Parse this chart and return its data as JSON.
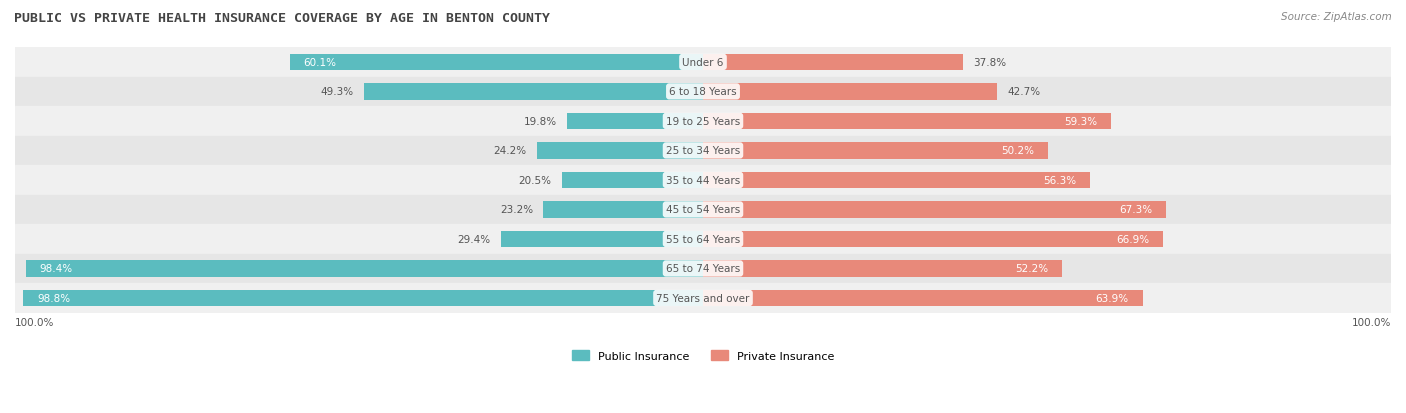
{
  "title": "PUBLIC VS PRIVATE HEALTH INSURANCE COVERAGE BY AGE IN BENTON COUNTY",
  "source": "Source: ZipAtlas.com",
  "categories": [
    "Under 6",
    "6 to 18 Years",
    "19 to 25 Years",
    "25 to 34 Years",
    "35 to 44 Years",
    "45 to 54 Years",
    "55 to 64 Years",
    "65 to 74 Years",
    "75 Years and over"
  ],
  "public_values": [
    60.1,
    49.3,
    19.8,
    24.2,
    20.5,
    23.2,
    29.4,
    98.4,
    98.8
  ],
  "private_values": [
    37.8,
    42.7,
    59.3,
    50.2,
    56.3,
    67.3,
    66.9,
    52.2,
    63.9
  ],
  "public_color": "#5bbcbf",
  "private_color": "#e8897a",
  "row_bg_colors": [
    "#f0f0f0",
    "#e6e6e6"
  ],
  "label_color": "#555555",
  "title_color": "#444444",
  "bar_height": 0.55,
  "figsize": [
    14.06,
    4.14
  ],
  "dpi": 100,
  "pub_inside_threshold": 50,
  "priv_inside_threshold": 50
}
